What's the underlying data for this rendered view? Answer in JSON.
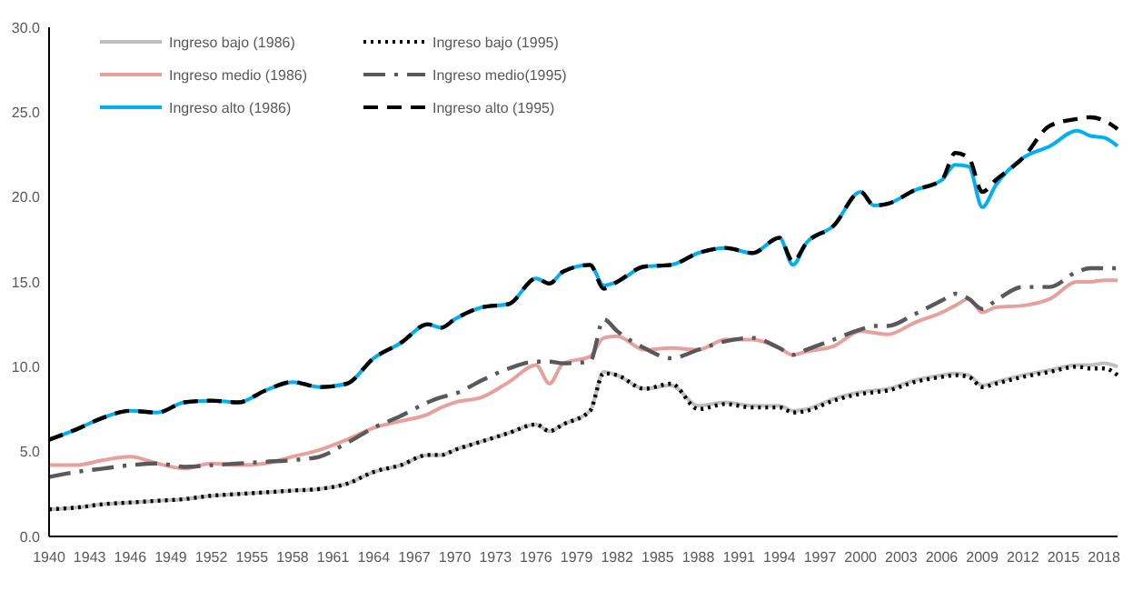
{
  "chart_data": {
    "type": "line",
    "xlim": [
      1940,
      2019
    ],
    "ylim": [
      0,
      30
    ],
    "xticks": [
      1940,
      1943,
      1946,
      1949,
      1952,
      1955,
      1958,
      1961,
      1964,
      1967,
      1970,
      1973,
      1976,
      1979,
      1982,
      1985,
      1988,
      1991,
      1994,
      1997,
      2000,
      2003,
      2006,
      2009,
      2012,
      2015,
      2018
    ],
    "yticks": [
      {
        "value": 0,
        "label": "0.0"
      },
      {
        "value": 5,
        "label": "5.0"
      },
      {
        "value": 10,
        "label": "10.0"
      },
      {
        "value": 15,
        "label": "15.0"
      },
      {
        "value": 20,
        "label": "20.0"
      },
      {
        "value": 25,
        "label": "25.0"
      },
      {
        "value": 30,
        "label": "30.0"
      }
    ],
    "grid": false,
    "legend": "top left",
    "marker": "none",
    "x": [
      1940,
      1942,
      1944,
      1946,
      1948,
      1950,
      1952,
      1954,
      1956,
      1958,
      1960,
      1962,
      1964,
      1966,
      1968,
      1969,
      1970,
      1972,
      1974,
      1976,
      1977,
      1978,
      1980,
      1981,
      1982,
      1984,
      1986,
      1988,
      1990,
      1992,
      1994,
      1995,
      1996,
      1998,
      2000,
      2001,
      2002,
      2004,
      2006,
      2007,
      2008,
      2009,
      2010,
      2012,
      2014,
      2016,
      2017,
      2018,
      2019
    ],
    "series": [
      {
        "name": "Ingreso bajo (1986)",
        "color": "#bfbfbf",
        "line_style": "solid",
        "values": [
          1.6,
          1.7,
          1.9,
          2.0,
          2.1,
          2.2,
          2.4,
          2.5,
          2.6,
          2.7,
          2.8,
          3.1,
          3.8,
          4.2,
          4.8,
          4.8,
          5.1,
          5.6,
          6.1,
          6.6,
          6.2,
          6.6,
          7.4,
          9.7,
          9.5,
          8.7,
          8.9,
          7.7,
          7.9,
          7.7,
          7.7,
          7.4,
          7.5,
          8.1,
          8.5,
          8.6,
          8.7,
          9.2,
          9.5,
          9.6,
          9.5,
          8.9,
          9.1,
          9.5,
          9.8,
          10.1,
          10.1,
          10.2,
          10.0
        ]
      },
      {
        "name": "Ingreso bajo (1995)",
        "color": "#000000",
        "line_style": "dotted",
        "values": [
          1.6,
          1.7,
          1.9,
          2.0,
          2.1,
          2.2,
          2.4,
          2.5,
          2.6,
          2.7,
          2.8,
          3.1,
          3.8,
          4.2,
          4.8,
          4.8,
          5.1,
          5.6,
          6.1,
          6.6,
          6.2,
          6.6,
          7.4,
          9.6,
          9.5,
          8.7,
          9.0,
          7.5,
          7.8,
          7.6,
          7.6,
          7.3,
          7.4,
          8.0,
          8.4,
          8.5,
          8.6,
          9.1,
          9.4,
          9.5,
          9.4,
          8.8,
          9.0,
          9.4,
          9.7,
          10.0,
          9.9,
          9.9,
          9.5
        ]
      },
      {
        "name": "Ingreso medio (1986)",
        "color": "#e6a19f",
        "line_style": "solid",
        "values": [
          4.2,
          4.2,
          4.5,
          4.7,
          4.3,
          4.0,
          4.3,
          4.2,
          4.3,
          4.7,
          5.1,
          5.7,
          6.4,
          6.8,
          7.2,
          7.6,
          7.9,
          8.2,
          9.1,
          10.1,
          9.0,
          10.2,
          10.6,
          11.7,
          11.8,
          11.0,
          11.1,
          11.0,
          11.6,
          11.6,
          11.1,
          10.7,
          10.9,
          11.2,
          12.1,
          12.0,
          11.9,
          12.6,
          13.2,
          13.6,
          14.0,
          13.2,
          13.5,
          13.6,
          14.0,
          15.0,
          15.0,
          15.1,
          15.1
        ]
      },
      {
        "name": "Ingreso medio(1995)",
        "color": "#595959",
        "line_style": "dashdot",
        "values": [
          3.5,
          3.8,
          4.0,
          4.2,
          4.3,
          4.1,
          4.2,
          4.3,
          4.4,
          4.5,
          4.7,
          5.5,
          6.4,
          7.1,
          7.9,
          8.2,
          8.4,
          9.2,
          9.9,
          10.3,
          10.3,
          10.2,
          10.3,
          12.8,
          12.1,
          11.1,
          10.5,
          11.0,
          11.5,
          11.7,
          11.1,
          10.7,
          11.0,
          11.6,
          12.2,
          12.4,
          12.4,
          13.1,
          13.9,
          14.3,
          14.0,
          13.4,
          13.9,
          14.7,
          14.7,
          15.6,
          15.8,
          15.8,
          15.8
        ]
      },
      {
        "name": "Ingreso alto (1986)",
        "color": "#00b0f0",
        "line_style": "solid",
        "values": [
          5.7,
          6.3,
          7.0,
          7.4,
          7.3,
          7.9,
          8.0,
          7.9,
          8.6,
          9.1,
          8.8,
          9.0,
          10.5,
          11.4,
          12.5,
          12.3,
          12.8,
          13.5,
          13.7,
          15.2,
          14.9,
          15.6,
          16.0,
          14.8,
          15.0,
          15.9,
          16.0,
          16.7,
          17.0,
          16.7,
          17.6,
          16.0,
          17.3,
          18.3,
          20.3,
          19.5,
          19.6,
          20.4,
          21.0,
          21.9,
          21.8,
          19.4,
          20.7,
          22.3,
          23.0,
          23.9,
          23.6,
          23.5,
          23.0
        ]
      },
      {
        "name": "Ingreso alto (1995)",
        "color": "#000000",
        "line_style": "dashed",
        "values": [
          5.7,
          6.3,
          7.0,
          7.4,
          7.3,
          7.9,
          8.0,
          7.9,
          8.6,
          9.1,
          8.8,
          9.0,
          10.5,
          11.4,
          12.5,
          12.3,
          12.8,
          13.5,
          13.7,
          15.2,
          14.9,
          15.6,
          16.0,
          14.6,
          15.0,
          15.9,
          16.0,
          16.7,
          17.0,
          16.7,
          17.6,
          16.2,
          17.3,
          18.3,
          20.3,
          19.5,
          19.6,
          20.4,
          21.0,
          22.6,
          22.3,
          20.3,
          21.0,
          22.3,
          24.2,
          24.6,
          24.7,
          24.5,
          24.0
        ]
      }
    ]
  }
}
